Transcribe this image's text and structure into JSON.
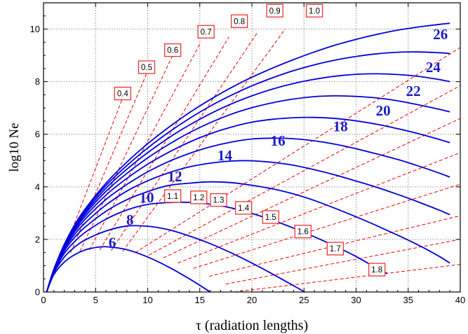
{
  "chart_data": {
    "type": "line",
    "title": "",
    "xlabel": "τ (radiation lengths)",
    "ylabel": "log10 Ne",
    "xlim": [
      0,
      40
    ],
    "ylim": [
      0,
      11
    ],
    "x_ticks": [
      "0",
      "5",
      "10",
      "15",
      "20",
      "25",
      "30",
      "35",
      "40"
    ],
    "y_ticks": [
      "0",
      "2",
      "4",
      "6",
      "8",
      "10"
    ],
    "grid": true,
    "colors": {
      "curves": "#0000dd",
      "age_lines": "#ee0000",
      "labels": "#1a1acc",
      "box_border": "#ee3333"
    },
    "series": [
      {
        "label": "6",
        "x": [
          0.3,
          1,
          2,
          3,
          4,
          5,
          6,
          8,
          10,
          12,
          14,
          16,
          18
        ],
        "y": [
          0.0,
          0.66,
          1.14,
          1.42,
          1.6,
          1.69,
          1.72,
          1.61,
          1.33,
          0.95,
          0.5,
          0.0,
          -0.5
        ]
      },
      {
        "label": "8",
        "x": [
          0.3,
          1,
          2,
          3,
          4,
          6,
          8,
          10,
          12,
          14,
          16,
          18,
          20,
          22,
          24,
          25.5
        ],
        "y": [
          0.0,
          0.73,
          1.33,
          1.71,
          1.98,
          2.32,
          2.51,
          2.5,
          2.37,
          2.13,
          1.84,
          1.49,
          1.1,
          0.68,
          0.24,
          -0.1
        ]
      },
      {
        "label": "10",
        "x": [
          0.3,
          1,
          2,
          3,
          4,
          6,
          8,
          10,
          12,
          14,
          16,
          18,
          20,
          22,
          24,
          26,
          28,
          30,
          32,
          33
        ],
        "y": [
          0.0,
          0.77,
          1.47,
          1.92,
          2.27,
          2.77,
          3.12,
          3.33,
          3.4,
          3.41,
          3.34,
          3.2,
          2.99,
          2.73,
          2.43,
          2.1,
          1.74,
          1.35,
          0.9,
          0.7
        ]
      },
      {
        "label": "12",
        "x": [
          0.3,
          1,
          2,
          3,
          4,
          6,
          8,
          10,
          12,
          14,
          16,
          18,
          20,
          22,
          24,
          26,
          28,
          30,
          32,
          34,
          36,
          38,
          39
        ],
        "y": [
          0.0,
          0.8,
          1.57,
          2.08,
          2.47,
          3.07,
          3.51,
          3.82,
          4.05,
          4.14,
          4.19,
          4.16,
          4.06,
          3.92,
          3.73,
          3.48,
          3.18,
          2.86,
          2.52,
          2.16,
          1.78,
          1.35,
          1.1
        ]
      },
      {
        "label": "14",
        "x": [
          0.3,
          1,
          2,
          3,
          4,
          6,
          8,
          10,
          12,
          14,
          16,
          18,
          20,
          22,
          24,
          26,
          28,
          30,
          32,
          34,
          36,
          38,
          39
        ],
        "y": [
          0.0,
          0.82,
          1.63,
          2.2,
          2.63,
          3.31,
          3.84,
          4.23,
          4.53,
          4.76,
          4.9,
          4.98,
          4.99,
          4.93,
          4.82,
          4.65,
          4.45,
          4.22,
          3.98,
          3.71,
          3.42,
          3.11,
          2.94
        ]
      },
      {
        "label": "16",
        "x": [
          0.3,
          1,
          2,
          3,
          4,
          6,
          8,
          10,
          12,
          14,
          16,
          18,
          20,
          22,
          24,
          26,
          28,
          30,
          32,
          34,
          36,
          38,
          39
        ],
        "y": [
          0.0,
          0.83,
          1.68,
          2.3,
          2.77,
          3.52,
          4.09,
          4.57,
          4.96,
          5.27,
          5.52,
          5.7,
          5.82,
          5.85,
          5.83,
          5.75,
          5.62,
          5.45,
          5.25,
          5.04,
          4.79,
          4.52,
          4.37
        ]
      },
      {
        "label": "18",
        "x": [
          0.3,
          1,
          2,
          3,
          4,
          6,
          8,
          10,
          12,
          14,
          16,
          18,
          20,
          22,
          24,
          26,
          28,
          30,
          32,
          34,
          36,
          38,
          39
        ],
        "y": [
          0.0,
          0.84,
          1.72,
          2.37,
          2.88,
          3.69,
          4.32,
          4.86,
          5.31,
          5.7,
          6.02,
          6.27,
          6.46,
          6.57,
          6.63,
          6.64,
          6.6,
          6.51,
          6.38,
          6.21,
          6.02,
          5.8,
          5.68
        ]
      },
      {
        "label": "20",
        "x": [
          0.3,
          1,
          2,
          3,
          4,
          6,
          8,
          10,
          12,
          14,
          16,
          18,
          20,
          22,
          24,
          26,
          28,
          30,
          32,
          34,
          36,
          38,
          39
        ],
        "y": [
          0.0,
          0.85,
          1.75,
          2.43,
          2.97,
          3.83,
          4.51,
          5.1,
          5.61,
          6.06,
          6.44,
          6.76,
          7.01,
          7.2,
          7.34,
          7.43,
          7.46,
          7.44,
          7.38,
          7.27,
          7.12,
          6.95,
          6.85
        ]
      },
      {
        "label": "22",
        "x": [
          0.3,
          1,
          2,
          3,
          4,
          6,
          8,
          10,
          12,
          14,
          16,
          18,
          20,
          22,
          24,
          26,
          28,
          30,
          32,
          34,
          36,
          38,
          39
        ],
        "y": [
          0.0,
          0.86,
          1.78,
          2.48,
          3.04,
          3.95,
          4.67,
          5.3,
          5.86,
          6.35,
          6.78,
          7.15,
          7.46,
          7.72,
          7.93,
          8.09,
          8.21,
          8.28,
          8.3,
          8.27,
          8.2,
          8.08,
          8.0
        ]
      },
      {
        "label": "24",
        "x": [
          0.3,
          1,
          2,
          3,
          4,
          6,
          8,
          10,
          12,
          14,
          16,
          18,
          20,
          22,
          24,
          26,
          28,
          30,
          32,
          34,
          36,
          38,
          39
        ],
        "y": [
          0.0,
          0.86,
          1.8,
          2.52,
          3.11,
          4.05,
          4.81,
          5.48,
          6.07,
          6.6,
          7.07,
          7.48,
          7.84,
          8.15,
          8.42,
          8.64,
          8.82,
          8.96,
          9.06,
          9.12,
          9.13,
          9.1,
          9.07
        ]
      },
      {
        "label": "26",
        "x": [
          0.3,
          1,
          2,
          3,
          4,
          6,
          8,
          10,
          12,
          14,
          16,
          18,
          20,
          22,
          24,
          26,
          28,
          30,
          32,
          34,
          36,
          38,
          39
        ],
        "y": [
          0.0,
          0.87,
          1.82,
          2.56,
          3.16,
          4.14,
          4.94,
          5.64,
          6.26,
          6.82,
          7.32,
          7.77,
          8.17,
          8.52,
          8.84,
          9.13,
          9.39,
          9.61,
          9.8,
          9.96,
          10.08,
          10.18,
          10.22
        ]
      }
    ],
    "curve_labels": [
      {
        "text": "6",
        "x": 6.6,
        "y": 1.88
      },
      {
        "text": "8",
        "x": 8.3,
        "y": 2.75
      },
      {
        "text": "10",
        "x": 9.9,
        "y": 3.6
      },
      {
        "text": "12",
        "x": 12.6,
        "y": 4.4
      },
      {
        "text": "14",
        "x": 17.4,
        "y": 5.2
      },
      {
        "text": "16",
        "x": 22.5,
        "y": 5.75
      },
      {
        "text": "18",
        "x": 28.5,
        "y": 6.3
      },
      {
        "text": "20",
        "x": 32.6,
        "y": 6.9
      },
      {
        "text": "22",
        "x": 35.5,
        "y": 7.65
      },
      {
        "text": "24",
        "x": 37.4,
        "y": 8.55
      },
      {
        "text": "26",
        "x": 38.1,
        "y": 9.8
      }
    ],
    "age_lines": {
      "type": "dashed",
      "values": [
        "0.4",
        "0.5",
        "0.6",
        "0.7",
        "0.8",
        "0.9",
        "1.0",
        "1.1",
        "1.2",
        "1.3",
        "1.4",
        "1.5",
        "1.6",
        "1.7",
        "1.8"
      ],
      "lines": [
        {
          "s": "0.4",
          "points": [
            [
              1.8,
              1.4
            ],
            [
              8.0,
              7.8
            ]
          ]
        },
        {
          "s": "0.5",
          "points": [
            [
              2.6,
              1.5
            ],
            [
              10.1,
              8.5
            ]
          ]
        },
        {
          "s": "0.6",
          "points": [
            [
              3.5,
              1.55
            ],
            [
              12.4,
              9.0
            ]
          ]
        },
        {
          "s": "0.7",
          "points": [
            [
              4.4,
              1.6
            ],
            [
              15.1,
              9.5
            ]
          ]
        },
        {
          "s": "0.8",
          "points": [
            [
              5.4,
              1.6
            ],
            [
              17.8,
              9.7
            ]
          ]
        },
        {
          "s": "0.9",
          "points": [
            [
              6.5,
              1.58
            ],
            [
              20.5,
              9.85
            ]
          ]
        },
        {
          "s": "1.0",
          "points": [
            [
              7.6,
              1.55
            ],
            [
              23.2,
              10.0
            ]
          ]
        },
        {
          "s": "1.1",
          "points": [
            [
              8.8,
              1.5
            ],
            [
              40,
              9.3
            ]
          ]
        },
        {
          "s": "1.2",
          "points": [
            [
              10.1,
              1.4
            ],
            [
              40,
              7.85
            ]
          ]
        },
        {
          "s": "1.3",
          "points": [
            [
              11.5,
              1.3
            ],
            [
              40,
              6.6
            ]
          ]
        },
        {
          "s": "1.4",
          "points": [
            [
              12.9,
              1.1
            ],
            [
              40,
              5.3
            ]
          ]
        },
        {
          "s": "1.5",
          "points": [
            [
              14.4,
              0.9
            ],
            [
              40,
              4.1
            ]
          ]
        },
        {
          "s": "1.6",
          "points": [
            [
              15.9,
              0.6
            ],
            [
              40,
              2.9
            ]
          ]
        },
        {
          "s": "1.7",
          "points": [
            [
              17.5,
              0.3
            ],
            [
              40,
              2.0
            ]
          ]
        },
        {
          "s": "1.8",
          "points": [
            [
              18.3,
              0.0
            ],
            [
              40,
              1.05
            ]
          ]
        }
      ],
      "labels": [
        {
          "text": "0.4",
          "x": 7.6,
          "y": 7.55
        },
        {
          "text": "0.5",
          "x": 9.9,
          "y": 8.55
        },
        {
          "text": "0.6",
          "x": 12.4,
          "y": 9.2
        },
        {
          "text": "0.7",
          "x": 15.6,
          "y": 9.9
        },
        {
          "text": "0.8",
          "x": 18.8,
          "y": 10.3
        },
        {
          "text": "0.9",
          "x": 22.2,
          "y": 10.7
        },
        {
          "text": "1.0",
          "x": 26.0,
          "y": 10.7
        },
        {
          "text": "1.1",
          "x": 12.4,
          "y": 3.65
        },
        {
          "text": "1.2",
          "x": 14.9,
          "y": 3.6
        },
        {
          "text": "1.3",
          "x": 16.8,
          "y": 3.5
        },
        {
          "text": "1.4",
          "x": 19.2,
          "y": 3.2
        },
        {
          "text": "1.5",
          "x": 21.8,
          "y": 2.85
        },
        {
          "text": "1.6",
          "x": 24.9,
          "y": 2.3
        },
        {
          "text": "1.7",
          "x": 28.0,
          "y": 1.65
        },
        {
          "text": "1.8",
          "x": 32.0,
          "y": 0.85
        }
      ]
    }
  }
}
